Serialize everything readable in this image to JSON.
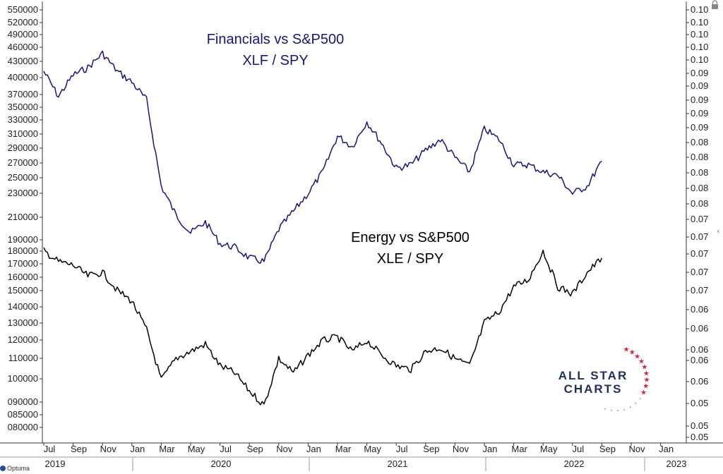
{
  "chart_data": {
    "type": "line",
    "vendor": "Optuma",
    "brand": {
      "line1": "ALL STAR",
      "line2": "CHARTS",
      "color": "#1f2e5c",
      "star_color": "#d4273a"
    },
    "x_month_labels": [
      "Jul",
      "Sep",
      "Nov",
      "Jan",
      "Mar",
      "May",
      "Jul",
      "Sep",
      "Nov",
      "Jan",
      "Mar",
      "May",
      "Jul",
      "Sep",
      "Nov",
      "Jan",
      "Mar",
      "May",
      "Jul",
      "Sep",
      "Nov",
      "Jan"
    ],
    "x_years": [
      "2019",
      "2020",
      "2021",
      "2022",
      "2023"
    ],
    "left_axis_ticks": [
      "550000",
      "520000",
      "490000",
      "460000",
      "430000",
      "400000",
      "370000",
      "350000",
      "330000",
      "310000",
      "290000",
      "270000",
      "250000",
      "230000",
      "210000",
      "190000",
      "180000",
      "170000",
      "160000",
      "150000",
      "140000",
      "130000",
      "120000",
      "110000",
      "100000",
      "090000",
      "085000",
      "080000"
    ],
    "right_axis_ticks": [
      "0.10",
      "0.10",
      "0.10",
      "0.10",
      "0.10",
      "0.09",
      "0.09",
      "0.09",
      "0.09",
      "0.09",
      "0.08",
      "0.08",
      "0.08",
      "0.08",
      "0.08",
      "0.07",
      "0.07",
      "0.07",
      "0.07",
      "0.07",
      "0.06",
      "0.06",
      "0.06",
      "0.06",
      "0.06",
      "0.05",
      "0.05",
      "0.05"
    ],
    "series": [
      {
        "name": "Financials vs S&P500",
        "ticker": "XLF / SPY",
        "color": "#14177a",
        "x": [
          "2019-07",
          "2019-08",
          "2019-09",
          "2019-10",
          "2019-11",
          "2019-12",
          "2020-01",
          "2020-02",
          "2020-03",
          "2020-04",
          "2020-05",
          "2020-06",
          "2020-07",
          "2020-08",
          "2020-09",
          "2020-10",
          "2020-11",
          "2020-12",
          "2021-01",
          "2021-02",
          "2021-03",
          "2021-04",
          "2021-05",
          "2021-06",
          "2021-07",
          "2021-08",
          "2021-09",
          "2021-10",
          "2021-11",
          "2021-12",
          "2022-01",
          "2022-02",
          "2022-03",
          "2022-04",
          "2022-05",
          "2022-06",
          "2022-07",
          "2022-08",
          "2022-09"
        ],
        "values": [
          0.099,
          0.0955,
          0.0985,
          0.0995,
          0.1015,
          0.099,
          0.0975,
          0.095,
          0.083,
          0.079,
          0.0765,
          0.078,
          0.075,
          0.0745,
          0.073,
          0.0725,
          0.077,
          0.0795,
          0.082,
          0.085,
          0.09,
          0.0885,
          0.092,
          0.089,
          0.0855,
          0.086,
          0.088,
          0.0895,
          0.087,
          0.085,
          0.091,
          0.0895,
          0.086,
          0.086,
          0.085,
          0.0845,
          0.082,
          0.083,
          0.0865
        ]
      },
      {
        "name": "Energy vs S&P500",
        "ticker": "XLE / SPY",
        "color": "#000000",
        "x": [
          "2019-07",
          "2019-08",
          "2019-09",
          "2019-10",
          "2019-11",
          "2019-12",
          "2020-01",
          "2020-02",
          "2020-03",
          "2020-04",
          "2020-05",
          "2020-06",
          "2020-07",
          "2020-08",
          "2020-09",
          "2020-10",
          "2020-11",
          "2020-12",
          "2021-01",
          "2021-02",
          "2021-03",
          "2021-04",
          "2021-05",
          "2021-06",
          "2021-07",
          "2021-08",
          "2021-09",
          "2021-10",
          "2021-11",
          "2021-12",
          "2022-01",
          "2022-02",
          "2022-03",
          "2022-04",
          "2022-05",
          "2022-06",
          "2022-07",
          "2022-08",
          "2022-09"
        ],
        "values": [
          0.074,
          0.0725,
          0.072,
          0.0705,
          0.071,
          0.0685,
          0.067,
          0.063,
          0.056,
          0.059,
          0.06,
          0.061,
          0.058,
          0.057,
          0.0545,
          0.0525,
          0.059,
          0.057,
          0.0595,
          0.0615,
          0.062,
          0.06,
          0.0615,
          0.0595,
          0.058,
          0.0575,
          0.06,
          0.0605,
          0.059,
          0.058,
          0.064,
          0.0655,
          0.069,
          0.07,
          0.074,
          0.069,
          0.068,
          0.071,
          0.073
        ]
      }
    ],
    "y_range": [
      0.05,
      0.105
    ],
    "grid": false,
    "legend": "inline-labels"
  }
}
